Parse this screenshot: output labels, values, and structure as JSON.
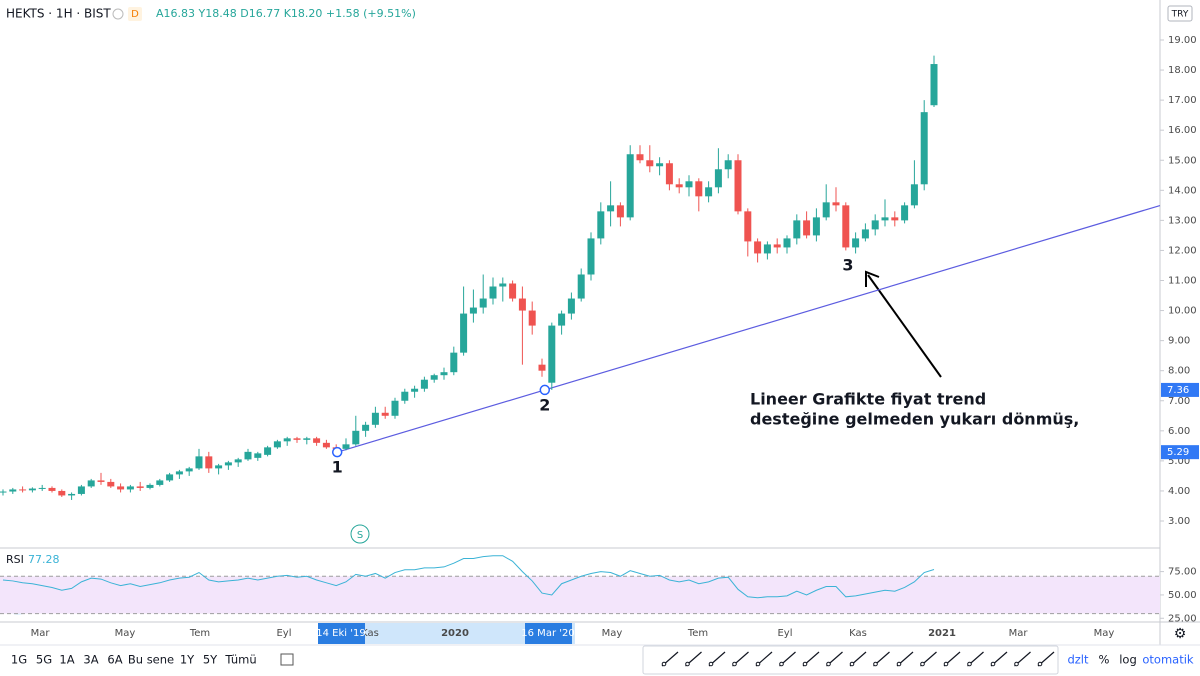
{
  "header": {
    "symbol": "HEKTS · 1H · BIST",
    "badge": "D",
    "legend": [
      "A16.83",
      "Y18.48",
      "D16.77",
      "K18.20",
      "+1.58 (+9.51%)"
    ],
    "currency": "TRY"
  },
  "chart_data": {
    "type": "candlestick",
    "up_color": "#26a69a",
    "down_color": "#ef5350",
    "ylim": [
      2.5,
      19.6
    ],
    "yticks": [
      {
        "value": 3,
        "label": "3.00"
      },
      {
        "value": 4,
        "label": "4.00"
      },
      {
        "value": 5,
        "label": "5.00"
      },
      {
        "value": 6,
        "label": "6.00"
      },
      {
        "value": 7,
        "label": "7.00"
      },
      {
        "value": 8,
        "label": "8.00"
      },
      {
        "value": 9,
        "label": "9.00"
      },
      {
        "value": 10,
        "label": "10.00"
      },
      {
        "value": 11,
        "label": "11.00"
      },
      {
        "value": 12,
        "label": "12.00"
      },
      {
        "value": 13,
        "label": "13.00"
      },
      {
        "value": 14,
        "label": "14.00"
      },
      {
        "value": 15,
        "label": "15.00"
      },
      {
        "value": 16,
        "label": "16.00"
      },
      {
        "value": 17,
        "label": "17.00"
      },
      {
        "value": 18,
        "label": "18.00"
      },
      {
        "value": 19,
        "label": "19.00"
      }
    ],
    "grid": false,
    "ohlc": [
      [
        3.95,
        4.05,
        3.85,
        3.98
      ],
      [
        3.98,
        4.1,
        3.9,
        4.05
      ],
      [
        4.05,
        4.15,
        3.95,
        4.02
      ],
      [
        4.02,
        4.12,
        3.95,
        4.08
      ],
      [
        4.08,
        4.2,
        4.0,
        4.1
      ],
      [
        4.1,
        4.15,
        3.95,
        4.0
      ],
      [
        4.0,
        4.05,
        3.8,
        3.85
      ],
      [
        3.85,
        3.95,
        3.7,
        3.9
      ],
      [
        3.9,
        4.2,
        3.85,
        4.15
      ],
      [
        4.15,
        4.4,
        4.1,
        4.35
      ],
      [
        4.35,
        4.6,
        4.2,
        4.3
      ],
      [
        4.3,
        4.4,
        4.1,
        4.15
      ],
      [
        4.15,
        4.25,
        3.95,
        4.05
      ],
      [
        4.05,
        4.2,
        3.95,
        4.15
      ],
      [
        4.15,
        4.3,
        4.0,
        4.1
      ],
      [
        4.1,
        4.25,
        4.05,
        4.2
      ],
      [
        4.2,
        4.4,
        4.15,
        4.35
      ],
      [
        4.35,
        4.6,
        4.3,
        4.55
      ],
      [
        4.55,
        4.7,
        4.4,
        4.65
      ],
      [
        4.65,
        4.8,
        4.5,
        4.75
      ],
      [
        4.75,
        5.4,
        4.7,
        5.15
      ],
      [
        5.15,
        5.3,
        4.6,
        4.75
      ],
      [
        4.75,
        4.9,
        4.55,
        4.85
      ],
      [
        4.85,
        5.0,
        4.7,
        4.95
      ],
      [
        4.95,
        5.1,
        4.8,
        5.05
      ],
      [
        5.05,
        5.4,
        5.0,
        5.3
      ],
      [
        5.1,
        5.3,
        5.0,
        5.25
      ],
      [
        5.2,
        5.5,
        5.15,
        5.45
      ],
      [
        5.45,
        5.7,
        5.4,
        5.65
      ],
      [
        5.65,
        5.8,
        5.5,
        5.75
      ],
      [
        5.75,
        5.8,
        5.6,
        5.7
      ],
      [
        5.7,
        5.8,
        5.55,
        5.75
      ],
      [
        5.75,
        5.8,
        5.5,
        5.6
      ],
      [
        5.6,
        5.7,
        5.4,
        5.45
      ],
      [
        5.45,
        5.55,
        5.29,
        5.4
      ],
      [
        5.4,
        5.75,
        5.35,
        5.55
      ],
      [
        5.55,
        6.5,
        5.5,
        6.0
      ],
      [
        6.0,
        6.3,
        5.8,
        6.2
      ],
      [
        6.2,
        6.8,
        6.1,
        6.6
      ],
      [
        6.6,
        6.8,
        6.4,
        6.5
      ],
      [
        6.5,
        7.1,
        6.4,
        7.0
      ],
      [
        7.0,
        7.4,
        6.9,
        7.3
      ],
      [
        7.3,
        7.5,
        7.1,
        7.4
      ],
      [
        7.4,
        7.8,
        7.3,
        7.7
      ],
      [
        7.7,
        7.9,
        7.6,
        7.85
      ],
      [
        7.85,
        8.1,
        7.7,
        7.95
      ],
      [
        7.95,
        8.8,
        7.85,
        8.6
      ],
      [
        8.6,
        10.8,
        8.5,
        9.9
      ],
      [
        9.9,
        10.7,
        9.6,
        10.1
      ],
      [
        10.1,
        11.2,
        9.9,
        10.4
      ],
      [
        10.4,
        11.1,
        10.2,
        10.8
      ],
      [
        10.8,
        11.1,
        10.3,
        10.9
      ],
      [
        10.9,
        11.0,
        10.3,
        10.4
      ],
      [
        10.4,
        10.8,
        8.2,
        10.0
      ],
      [
        10.0,
        10.3,
        9.2,
        9.5
      ],
      [
        8.2,
        8.4,
        7.8,
        8.0
      ],
      [
        7.6,
        9.6,
        7.36,
        9.5
      ],
      [
        9.5,
        10.0,
        9.2,
        9.9
      ],
      [
        9.9,
        10.6,
        9.7,
        10.4
      ],
      [
        10.4,
        11.4,
        10.3,
        11.2
      ],
      [
        11.2,
        12.6,
        11.0,
        12.4
      ],
      [
        12.4,
        13.6,
        12.2,
        13.3
      ],
      [
        13.3,
        14.3,
        12.8,
        13.5
      ],
      [
        13.5,
        13.6,
        12.8,
        13.1
      ],
      [
        13.1,
        15.5,
        13.0,
        15.2
      ],
      [
        15.2,
        15.5,
        14.9,
        15.0
      ],
      [
        15.0,
        15.5,
        14.6,
        14.8
      ],
      [
        14.8,
        15.1,
        14.5,
        14.9
      ],
      [
        14.9,
        15.0,
        14.0,
        14.2
      ],
      [
        14.2,
        14.4,
        13.9,
        14.1
      ],
      [
        14.1,
        14.5,
        13.8,
        14.3
      ],
      [
        14.3,
        14.4,
        13.3,
        13.8
      ],
      [
        13.8,
        14.3,
        13.6,
        14.1
      ],
      [
        14.1,
        15.4,
        13.9,
        14.7
      ],
      [
        14.7,
        15.2,
        14.4,
        15.0
      ],
      [
        15.0,
        15.2,
        13.2,
        13.3
      ],
      [
        13.3,
        13.4,
        11.8,
        12.3
      ],
      [
        12.3,
        12.4,
        11.6,
        11.9
      ],
      [
        11.9,
        12.3,
        11.7,
        12.2
      ],
      [
        12.2,
        12.4,
        11.9,
        12.1
      ],
      [
        12.1,
        12.5,
        11.9,
        12.4
      ],
      [
        12.4,
        13.2,
        12.2,
        13.0
      ],
      [
        13.0,
        13.3,
        12.4,
        12.5
      ],
      [
        12.5,
        13.4,
        12.3,
        13.1
      ],
      [
        13.1,
        14.2,
        13.0,
        13.6
      ],
      [
        13.6,
        14.1,
        13.3,
        13.5
      ],
      [
        13.5,
        13.6,
        12.0,
        12.1
      ],
      [
        12.1,
        12.6,
        11.9,
        12.4
      ],
      [
        12.4,
        12.9,
        12.3,
        12.7
      ],
      [
        12.7,
        13.2,
        12.5,
        13.0
      ],
      [
        13.0,
        13.7,
        12.8,
        13.1
      ],
      [
        13.1,
        13.3,
        12.8,
        13.0
      ],
      [
        13.0,
        13.6,
        12.9,
        13.5
      ],
      [
        13.5,
        15.0,
        13.4,
        14.2
      ],
      [
        14.2,
        17.0,
        14.0,
        16.6
      ],
      [
        16.83,
        18.48,
        16.77,
        18.2
      ]
    ],
    "price_marks": [
      7.36,
      5.29
    ],
    "trendline": {
      "color": "#5c5ce0",
      "points": [
        "1",
        "2"
      ],
      "label_3": "3"
    },
    "annotation": [
      "Lineer Grafikte fiyat trend",
      "desteğine gelmeden yukarı dönmüş,"
    ],
    "marker": "S",
    "x_labels": [
      "Mar",
      "May",
      "Tem",
      "Eyl",
      "14 Eki '19",
      "Kas",
      "2020",
      "16 Mar '20",
      "May",
      "Tem",
      "Eyl",
      "Kas",
      "2021",
      "Mar",
      "May"
    ],
    "rsi": {
      "name": "RSI",
      "last_label": "77.28",
      "color": "#3bb3d6",
      "ylim": [
        21,
        96
      ],
      "yticks": [
        {
          "value": 75,
          "label": "75.00"
        },
        {
          "value": 50,
          "label": "50.00"
        },
        {
          "value": 25,
          "label": "25.00"
        }
      ],
      "bands": [
        30,
        70
      ],
      "values": [
        66,
        65,
        63,
        62,
        60,
        58,
        55,
        57,
        64,
        68,
        67,
        63,
        60,
        62,
        59,
        61,
        63,
        66,
        68,
        69,
        74,
        66,
        64,
        65,
        66,
        68,
        66,
        68,
        70,
        71,
        69,
        70,
        66,
        63,
        60,
        64,
        72,
        70,
        73,
        68,
        74,
        77,
        77,
        79,
        79,
        80,
        84,
        89,
        89,
        91,
        92,
        92,
        86,
        75,
        65,
        52,
        50,
        62,
        66,
        70,
        73,
        75,
        74,
        70,
        76,
        73,
        70,
        71,
        66,
        64,
        66,
        62,
        64,
        68,
        69,
        56,
        48,
        47,
        48,
        48,
        49,
        54,
        50,
        55,
        59,
        59,
        48,
        49,
        51,
        53,
        55,
        54,
        58,
        64,
        74,
        77.28
      ]
    }
  },
  "toolbar": {
    "ranges": [
      "1G",
      "5G",
      "1A",
      "3A",
      "6A",
      "Bu sene",
      "1Y",
      "5Y",
      "Tümü"
    ],
    "right": [
      "dzlt",
      "%",
      "log",
      "otomatik"
    ]
  }
}
